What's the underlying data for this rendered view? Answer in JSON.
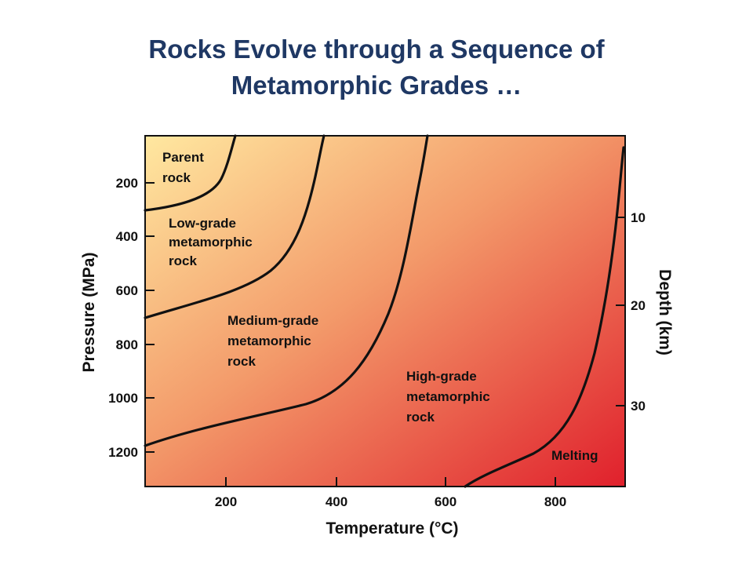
{
  "title": {
    "line1": "Rocks Evolve through a Sequence of",
    "line2": "Metamorphic Grades …"
  },
  "axes": {
    "x_title": "Temperature (°C)",
    "y_left_title": "Pressure (MPa)",
    "y_right_title": "Depth (km)",
    "x_ticks": [
      "200",
      "400",
      "600",
      "800"
    ],
    "y_left_ticks": [
      "200",
      "400",
      "600",
      "800",
      "1000",
      "1200"
    ],
    "y_right_ticks": [
      "10",
      "20",
      "30"
    ]
  },
  "regions": {
    "parent": [
      "Parent",
      "rock"
    ],
    "low": [
      "Low-grade",
      "metamorphic",
      "rock"
    ],
    "medium": [
      "Medium-grade",
      "metamorphic",
      "rock"
    ],
    "high": [
      "High-grade",
      "metamorphic",
      "rock"
    ],
    "melting": [
      "Melting"
    ]
  },
  "colors": {
    "gradient_start": "#ffe8a0",
    "gradient_end": "#e0202c",
    "title": "#1f3864"
  }
}
